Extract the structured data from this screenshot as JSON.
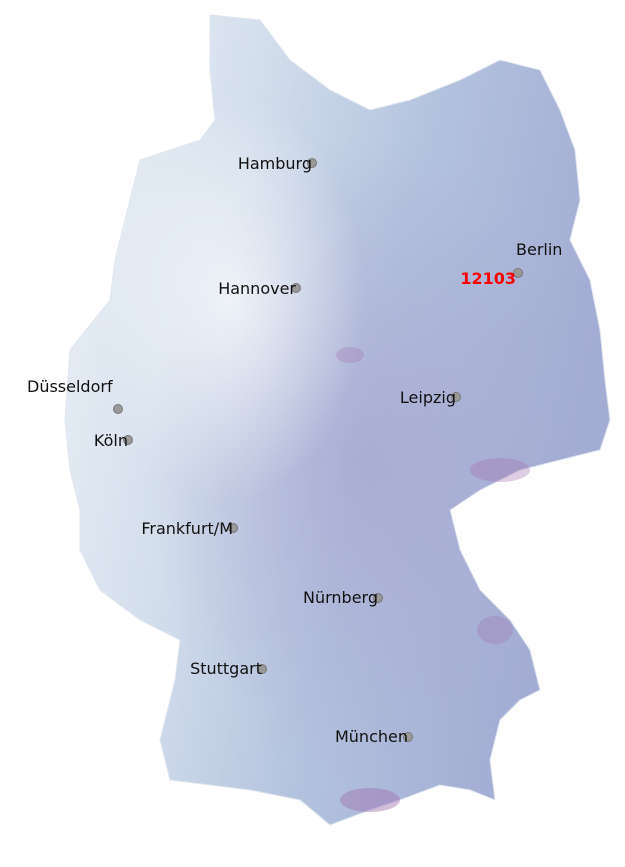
{
  "map": {
    "colors": {
      "low": "#e8eef6",
      "mid": "#b3c5de",
      "high": "#a3a8d2",
      "peak": "#a070b0",
      "dot": "#999999",
      "highlight": "#ff0000"
    },
    "cities": [
      {
        "name": "Hamburg"
      },
      {
        "name": "Berlin"
      },
      {
        "name": "Hannover"
      },
      {
        "name": "Düsseldorf"
      },
      {
        "name": "Köln"
      },
      {
        "name": "Leipzig"
      },
      {
        "name": "Frankfurt/M"
      },
      {
        "name": "Nürnberg"
      },
      {
        "name": "Stuttgart"
      },
      {
        "name": "München"
      }
    ],
    "highlight_label": "12103"
  }
}
